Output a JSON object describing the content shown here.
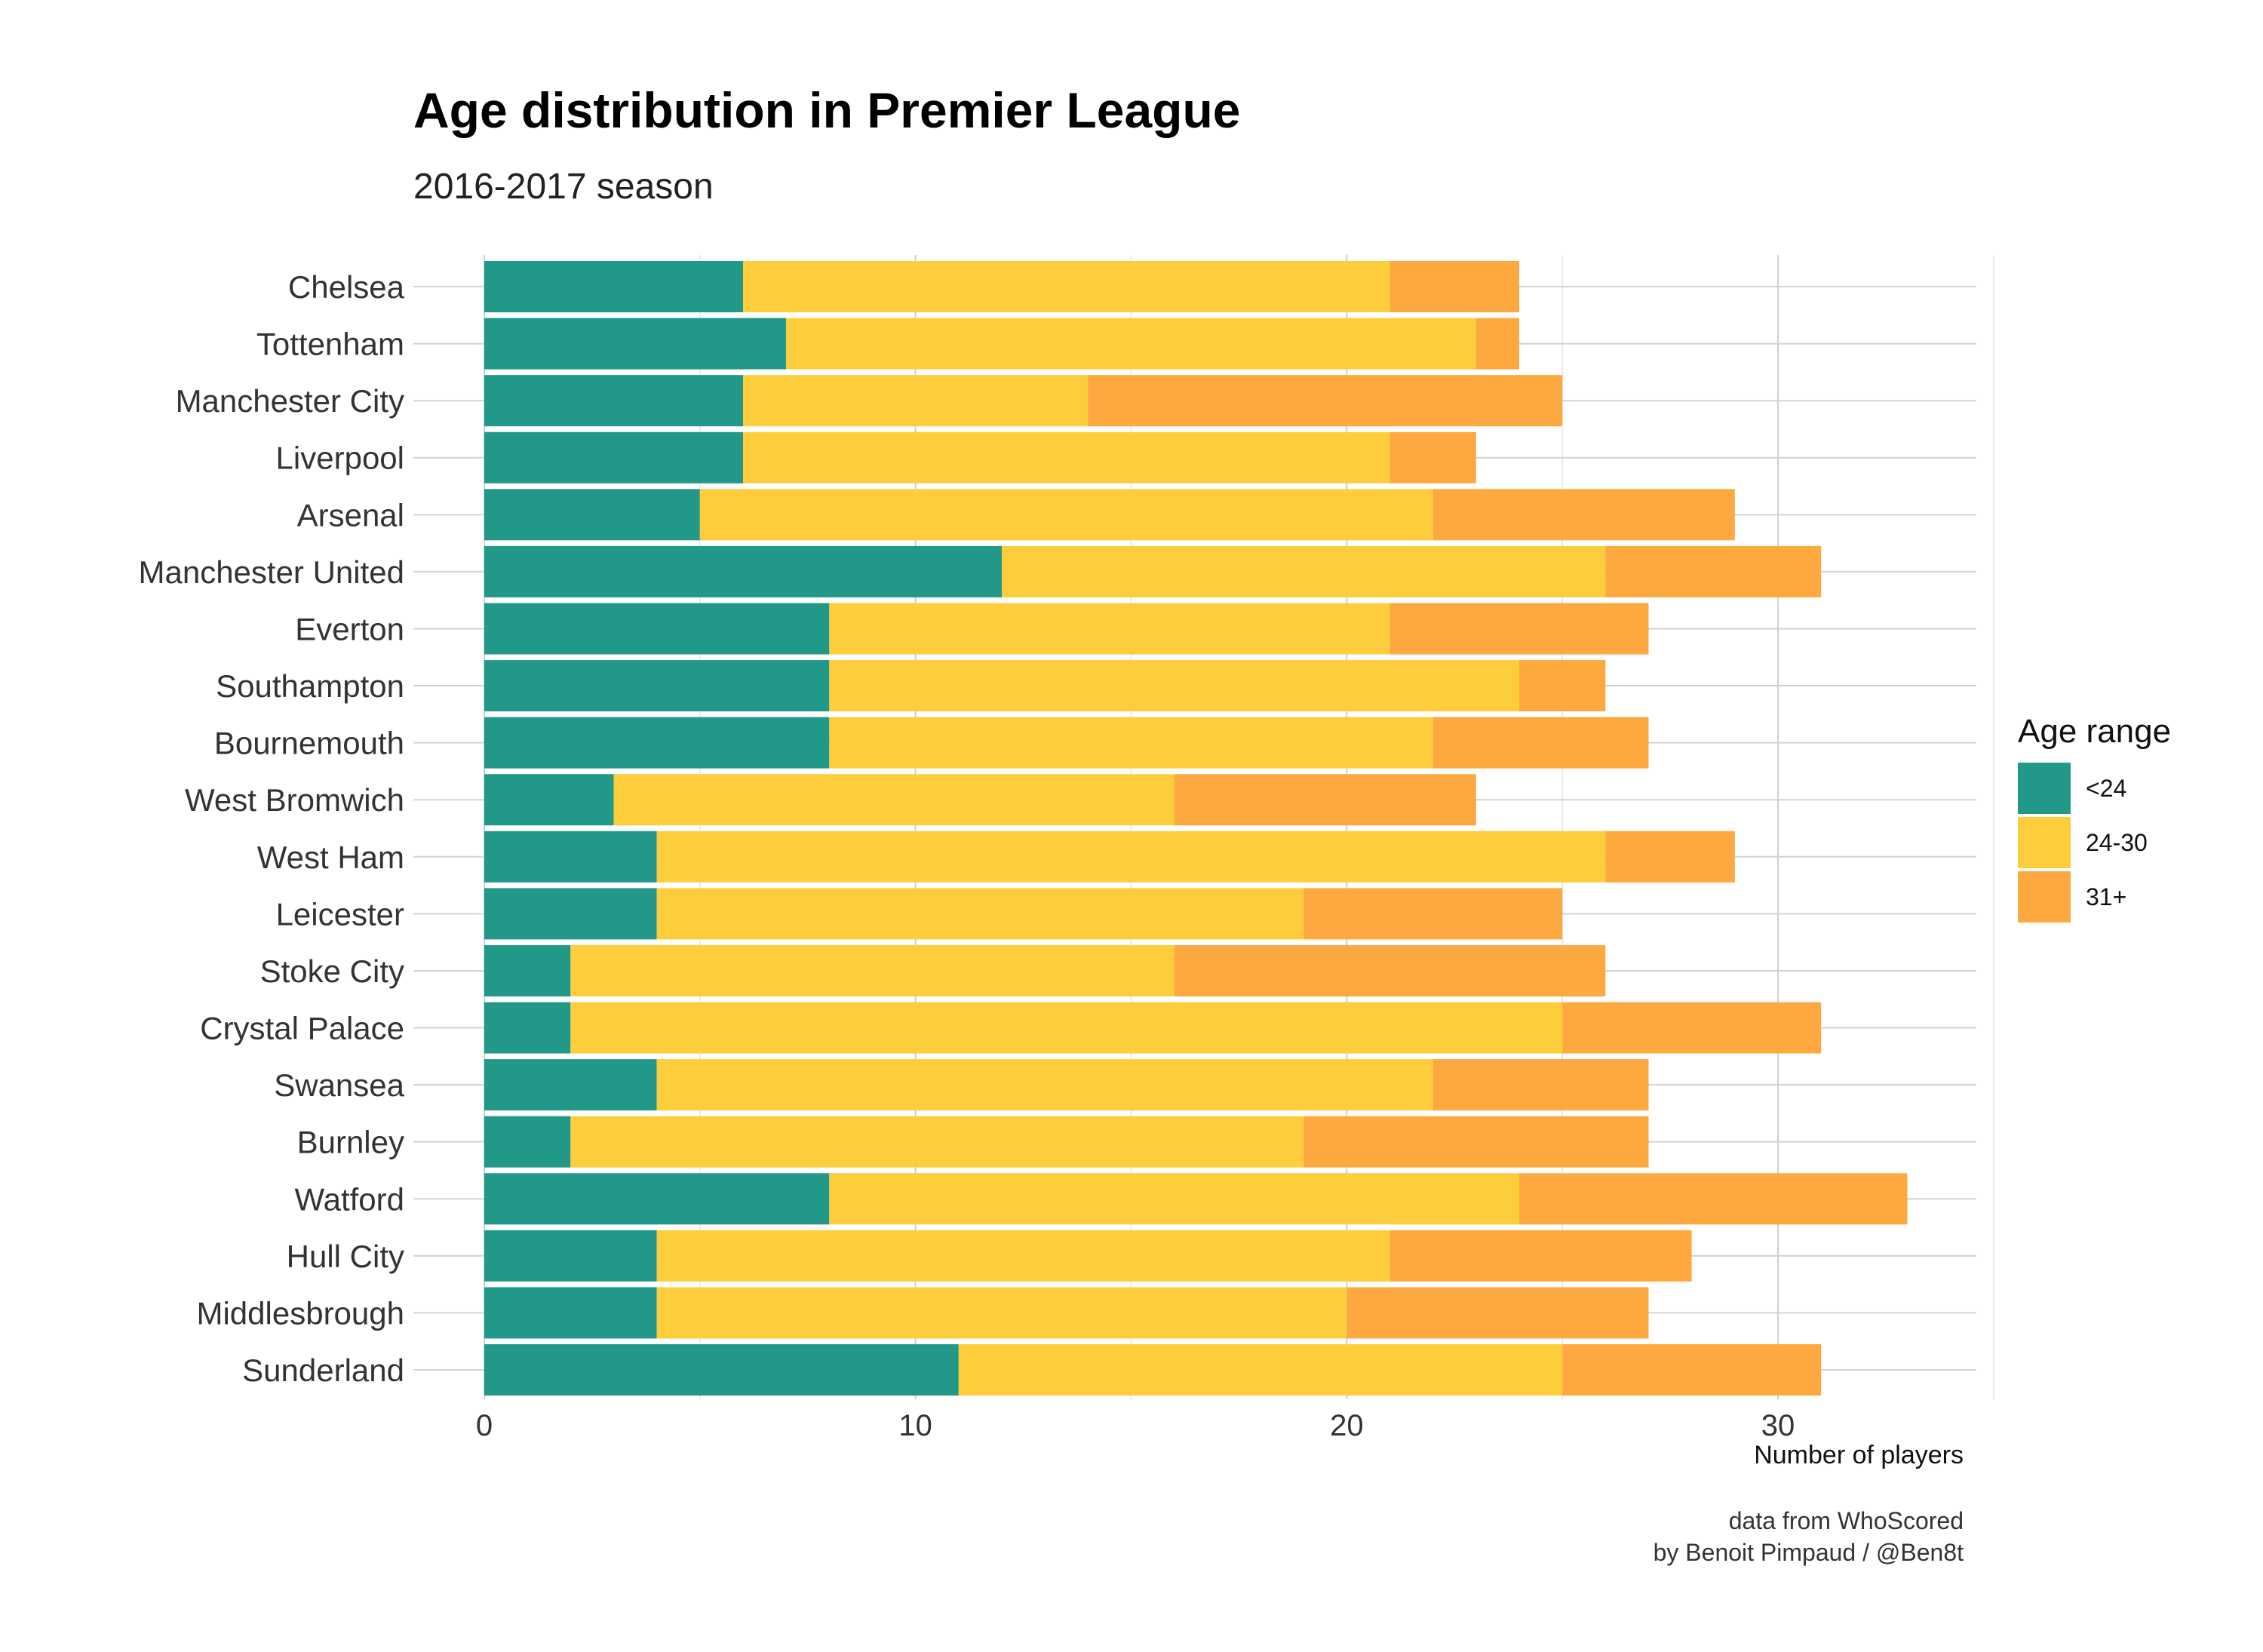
{
  "title": "Age distribution in Premier League",
  "subtitle": "2016-2017 season",
  "caption_line1": "data from WhoScored",
  "caption_line2": "by Benoit Pimpaud / @Ben8t",
  "colors": {
    "u24": "#229988",
    "mid": "#FDCD3C",
    "o31": "#FDA940"
  },
  "chart_data": {
    "type": "bar",
    "orientation": "horizontal",
    "stacked": true,
    "xlabel": "Number of players",
    "ylabel": "",
    "xlim": [
      0,
      35
    ],
    "xticks": [
      0,
      10,
      20,
      30
    ],
    "grid": true,
    "legend_title": "Age range",
    "legend_position": "right",
    "categories": [
      "Chelsea",
      "Tottenham",
      "Manchester City",
      "Liverpool",
      "Arsenal",
      "Manchester United",
      "Everton",
      "Southampton",
      "Bournemouth",
      "West Bromwich",
      "West Ham",
      "Leicester",
      "Stoke City",
      "Crystal Palace",
      "Swansea",
      "Burnley",
      "Watford",
      "Hull City",
      "Middlesbrough",
      "Sunderland"
    ],
    "series": [
      {
        "name": "<24",
        "color": "#229988",
        "values": [
          6,
          7,
          6,
          6,
          5,
          12,
          8,
          8,
          8,
          3,
          4,
          4,
          2,
          2,
          4,
          2,
          8,
          4,
          4,
          11
        ]
      },
      {
        "name": "24-30",
        "color": "#FDCD3C",
        "values": [
          15,
          16,
          8,
          15,
          17,
          14,
          13,
          16,
          14,
          13,
          22,
          15,
          14,
          23,
          18,
          17,
          16,
          17,
          16,
          14
        ]
      },
      {
        "name": "31+",
        "color": "#FDA940",
        "values": [
          3,
          1,
          11,
          2,
          7,
          5,
          6,
          2,
          5,
          7,
          3,
          6,
          10,
          6,
          5,
          8,
          9,
          7,
          7,
          6
        ]
      }
    ]
  }
}
